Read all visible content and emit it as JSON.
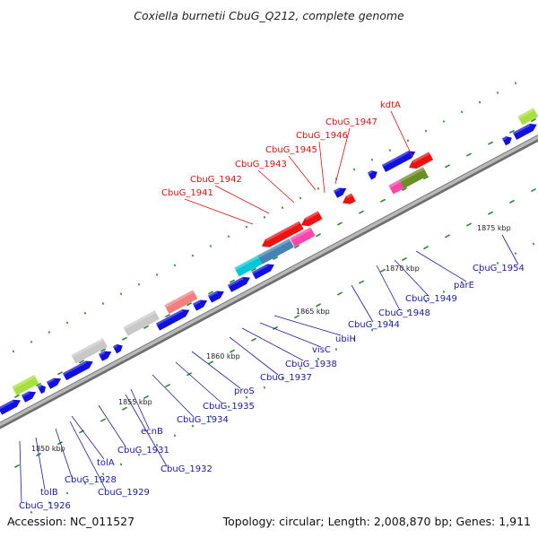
{
  "title": "Coxiella burnetii CbuG_Q212, complete genome",
  "accession": "Accession: NC_011527",
  "topology": "Topology: circular; Length: 2,008,870 bp; Genes: 1,911",
  "colors": {
    "forward": "#1010e0",
    "reverse": "#ee1111",
    "label_red": "#dd1111",
    "label_blue": "#1a1aa8",
    "backbone": "#909090",
    "dot": "#2e8b2e"
  },
  "scale_labels": {
    "k1850": "1850 kbp",
    "k1855": "1855 kbp",
    "k1860": "1860 kbp",
    "k1865": "1865 kbp",
    "k1870": "1870 kbp",
    "k1875": "1875 kbp"
  },
  "labels": {
    "kdta": "kdtA",
    "cbug_1947": "CbuG_1947",
    "cbug_1946": "CbuG_1946",
    "cbug_1945": "CbuG_1945",
    "cbug_1943": "CbuG_1943",
    "cbug_1942": "CbuG_1942",
    "cbug_1941": "CbuG_1941",
    "cbug_1954": "CbuG_1954",
    "pare": "parE",
    "cbug_1949": "CbuG_1949",
    "cbug_1948": "CbuG_1948",
    "cbug_1944": "CbuG_1944",
    "ubih": "ubiH",
    "visc": "visC",
    "cbug_1938": "CbuG_1938",
    "cbug_1937": "CbuG_1937",
    "pros": "proS",
    "cbug_1935": "CbuG_1935",
    "cbug_1934": "CbuG_1934",
    "ecnb": "ecnB",
    "cbug_1932": "CbuG_1932",
    "cbug_1931": "CbuG_1931",
    "tola": "tolA",
    "cbug_1929": "CbuG_1929",
    "cbug_1928": "CbuG_1928",
    "tolb": "tolB",
    "cbug_1926": "CbuG_1926"
  }
}
